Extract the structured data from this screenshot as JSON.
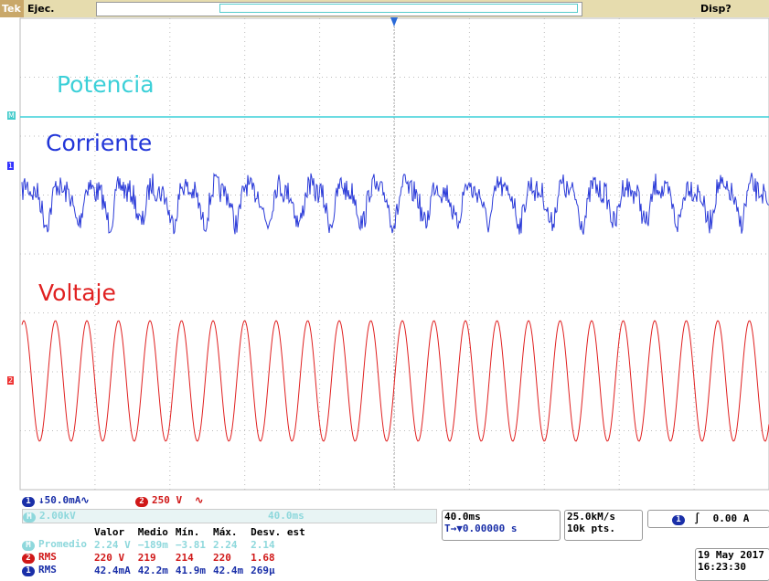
{
  "header": {
    "brand": "Tek",
    "run": "Ejec.",
    "trigger_status": "Disp?"
  },
  "traces": [
    {
      "label": "Potencia",
      "marker": "M"
    },
    {
      "label": "Corriente",
      "marker": "1"
    },
    {
      "label": "Voltaje",
      "marker": "2"
    }
  ],
  "channels": [
    {
      "badge": "1",
      "scale": "↓50.0mA∿"
    },
    {
      "badge": "2",
      "scale": "250 V",
      "coupling": "∿"
    }
  ],
  "math": {
    "badge": "M",
    "scale": "2.00kV",
    "time": "40.0ms"
  },
  "measurements": {
    "columns": [
      "Valor",
      "Medio",
      "Mín.",
      "Máx.",
      "Desv. est"
    ],
    "rows": [
      {
        "badge": "M",
        "type": "Promedio",
        "cells": [
          "2.24 V",
          "−189m",
          "−3.81",
          "2.24",
          "2.14"
        ]
      },
      {
        "badge": "2",
        "type": "RMS",
        "cells": [
          "220 V",
          "219",
          "214",
          "220",
          "1.68"
        ]
      },
      {
        "badge": "1",
        "type": "RMS",
        "cells": [
          "42.4mA",
          "42.2m",
          "41.9m",
          "42.4m",
          "269µ"
        ]
      }
    ]
  },
  "timebase": {
    "scale": "40.0ms",
    "position": "▼0.00000 s",
    "position_icon": "T→"
  },
  "acquisition": {
    "rate": "25.0kM/s",
    "points": "10k pts."
  },
  "trigger": {
    "badge": "1",
    "slope": "∫",
    "level": "0.00 A"
  },
  "clock": {
    "date": "19 May 2017",
    "time": "16:23:30"
  }
}
